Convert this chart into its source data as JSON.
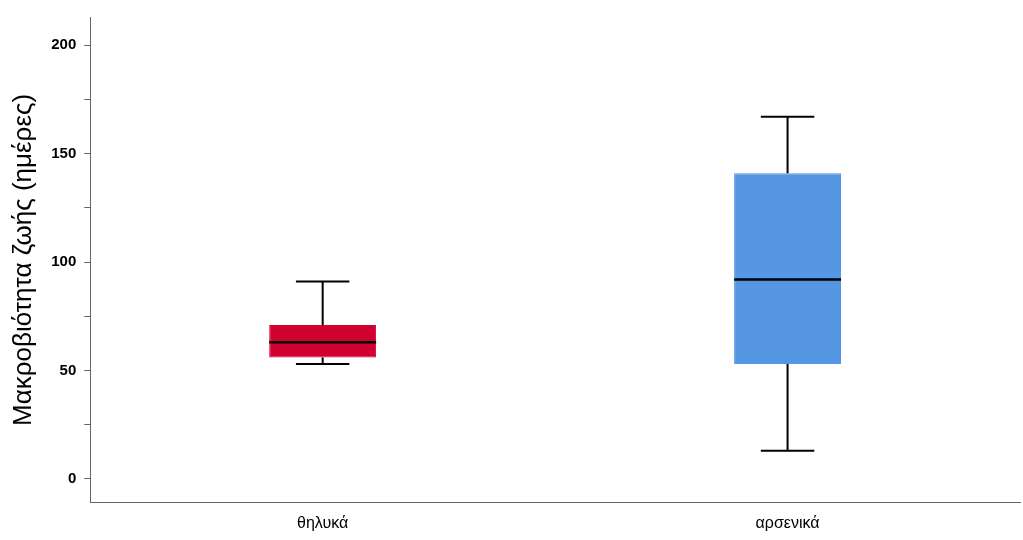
{
  "chart_data": {
    "type": "box",
    "ylabel": "Μακροβιότητα ζωής (ημέρες)",
    "categories": [
      "θηλυκά",
      "αρσενικά"
    ],
    "boxes": [
      {
        "low": 53,
        "q1": 56,
        "median": 63,
        "q3": 71,
        "high": 91
      },
      {
        "low": 13,
        "q1": 53,
        "median": 92,
        "q3": 141,
        "high": 167
      }
    ],
    "colors": [
      "#d0002f",
      "#5597e3"
    ],
    "ylim": [
      -11,
      213
    ],
    "yticks": [
      0,
      {
        "value": 25,
        "label": null
      },
      50,
      {
        "value": 75,
        "label": null
      },
      100,
      {
        "value": 125,
        "label": null
      },
      150,
      {
        "value": 175,
        "label": null
      },
      200
    ],
    "grid": false,
    "legend": false
  }
}
